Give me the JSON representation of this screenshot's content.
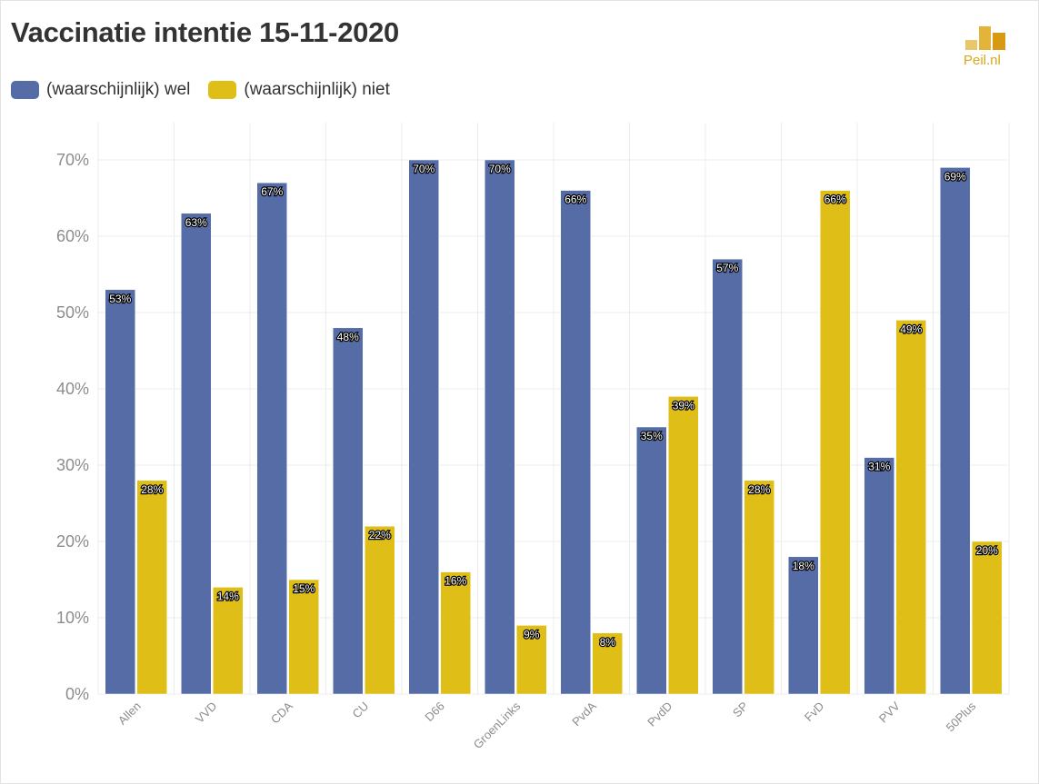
{
  "header": {
    "title": "Vaccinatie intentie 15-11-2020",
    "brand": "Peil.nl"
  },
  "colors": {
    "wel": "#566ca6",
    "niet": "#dfbf17",
    "grid": "#ececec",
    "tick": "#8c8c8c",
    "logo": "#d9a519"
  },
  "chart_data": {
    "type": "bar",
    "title": "Vaccinatie intentie 15-11-2020",
    "categories": [
      "Allen",
      "VVD",
      "CDA",
      "CU",
      "D66",
      "GroenLinks",
      "PvdA",
      "PvdD",
      "SP",
      "FvD",
      "PVV",
      "50Plus"
    ],
    "series": [
      {
        "name": "(waarschijnlijk) wel",
        "color": "#566ca6",
        "values": [
          53,
          63,
          67,
          48,
          70,
          70,
          66,
          35,
          57,
          18,
          31,
          69
        ]
      },
      {
        "name": "(waarschijnlijk) niet",
        "color": "#dfbf17",
        "values": [
          28,
          14,
          15,
          22,
          16,
          9,
          8,
          39,
          28,
          66,
          49,
          20
        ]
      }
    ],
    "ylim": [
      0,
      70
    ],
    "yticks": [
      0,
      10,
      20,
      30,
      40,
      50,
      60,
      70
    ],
    "yticks_format": "%",
    "grid": true,
    "legend": "top-left",
    "data_labels": true
  }
}
